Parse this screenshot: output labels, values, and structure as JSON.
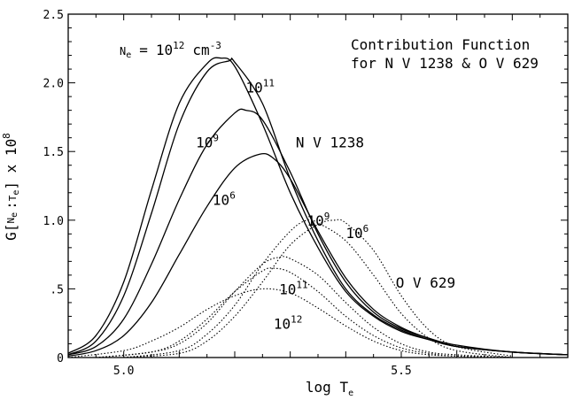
{
  "chart_data": {
    "type": "line",
    "xlabel": {
      "text": "log",
      "sym": "T",
      "sub": "e"
    },
    "ylabel": {
      "pre": "G[",
      "n": "N",
      "nsub": "e",
      "sep": ":",
      "t": "T",
      "tsub": "e",
      "post": "] x 10",
      "sup": "8"
    },
    "xlim": [
      4.9,
      5.8
    ],
    "ylim": [
      0,
      2.5
    ],
    "x_ticks": [
      {
        "value": 5.0,
        "label": "5.0"
      },
      {
        "value": 5.5,
        "label": "5.5"
      }
    ],
    "y_ticks": [
      {
        "value": 0,
        "label": "0"
      },
      {
        "value": 0.5,
        "label": ".5"
      },
      {
        "value": 1.0,
        "label": "1.0"
      },
      {
        "value": 1.5,
        "label": "1.5"
      },
      {
        "value": 2.0,
        "label": "2.0"
      },
      {
        "value": 2.5,
        "label": "2.5"
      }
    ],
    "title_lines": [
      "Contribution Function",
      "for N V 1238 & O V 629"
    ],
    "density_label": {
      "sym": "N",
      "sub": "e",
      "eq": "=",
      "base": "10",
      "exp": "12",
      "unit": "cm",
      "unit_exp": "-3"
    },
    "series": [
      {
        "style": "solid",
        "x": [
          4.9,
          4.95,
          5.0,
          5.05,
          5.1,
          5.15,
          5.175,
          5.2,
          5.25,
          5.3,
          5.35,
          5.4,
          5.45,
          5.5,
          5.55,
          5.6,
          5.7,
          5.8
        ],
        "y": [
          0.03,
          0.16,
          0.55,
          1.22,
          1.85,
          2.14,
          2.18,
          2.12,
          1.7,
          1.2,
          0.8,
          0.48,
          0.3,
          0.19,
          0.13,
          0.08,
          0.04,
          0.02
        ]
      },
      {
        "style": "solid",
        "x": [
          4.9,
          4.95,
          5.0,
          5.05,
          5.1,
          5.15,
          5.19,
          5.2,
          5.25,
          5.3,
          5.35,
          5.4,
          5.45,
          5.5,
          5.55,
          5.6,
          5.7,
          5.8
        ],
        "y": [
          0.02,
          0.12,
          0.45,
          1.05,
          1.7,
          2.08,
          2.16,
          2.15,
          1.85,
          1.3,
          0.85,
          0.5,
          0.31,
          0.2,
          0.13,
          0.08,
          0.04,
          0.02
        ]
      },
      {
        "style": "solid",
        "x": [
          4.9,
          4.95,
          5.0,
          5.05,
          5.1,
          5.15,
          5.2,
          5.22,
          5.25,
          5.3,
          5.35,
          5.4,
          5.45,
          5.5,
          5.55,
          5.6,
          5.7,
          5.8
        ],
        "y": [
          0.02,
          0.08,
          0.28,
          0.68,
          1.15,
          1.55,
          1.78,
          1.8,
          1.73,
          1.35,
          0.9,
          0.55,
          0.33,
          0.21,
          0.14,
          0.08,
          0.04,
          0.02
        ]
      },
      {
        "style": "solid",
        "x": [
          4.9,
          4.95,
          5.0,
          5.05,
          5.1,
          5.15,
          5.2,
          5.245,
          5.27,
          5.3,
          5.35,
          5.4,
          5.45,
          5.5,
          5.55,
          5.6,
          5.7,
          5.8
        ],
        "y": [
          0.01,
          0.05,
          0.16,
          0.4,
          0.75,
          1.1,
          1.38,
          1.48,
          1.45,
          1.3,
          0.92,
          0.58,
          0.35,
          0.22,
          0.14,
          0.09,
          0.04,
          0.02
        ]
      },
      {
        "style": "dotted",
        "x": [
          5.0,
          5.1,
          5.15,
          5.2,
          5.25,
          5.3,
          5.35,
          5.38,
          5.4,
          5.45,
          5.5,
          5.55,
          5.6,
          5.7
        ],
        "y": [
          0.0,
          0.03,
          0.12,
          0.3,
          0.55,
          0.82,
          0.97,
          1.0,
          0.98,
          0.78,
          0.45,
          0.2,
          0.08,
          0.01
        ]
      },
      {
        "style": "dotted",
        "x": [
          5.0,
          5.1,
          5.15,
          5.2,
          5.25,
          5.3,
          5.33,
          5.35,
          5.4,
          5.45,
          5.5,
          5.55,
          5.6,
          5.7
        ],
        "y": [
          0.0,
          0.05,
          0.17,
          0.38,
          0.68,
          0.92,
          1.0,
          0.98,
          0.85,
          0.6,
          0.32,
          0.14,
          0.05,
          0.0
        ]
      },
      {
        "style": "dotted",
        "x": [
          4.95,
          5.05,
          5.1,
          5.15,
          5.2,
          5.25,
          5.28,
          5.3,
          5.35,
          5.4,
          5.45,
          5.5,
          5.55,
          5.6,
          5.7
        ],
        "y": [
          0.0,
          0.04,
          0.1,
          0.25,
          0.48,
          0.68,
          0.73,
          0.72,
          0.6,
          0.4,
          0.22,
          0.1,
          0.04,
          0.02,
          0.0
        ]
      },
      {
        "style": "dotted",
        "x": [
          4.95,
          5.05,
          5.1,
          5.15,
          5.2,
          5.25,
          5.27,
          5.3,
          5.35,
          5.4,
          5.45,
          5.5,
          5.55,
          5.6,
          5.7
        ],
        "y": [
          0.0,
          0.04,
          0.12,
          0.28,
          0.48,
          0.63,
          0.65,
          0.62,
          0.48,
          0.3,
          0.16,
          0.07,
          0.03,
          0.01,
          0.0
        ]
      },
      {
        "style": "dotted",
        "x": [
          4.9,
          5.0,
          5.05,
          5.1,
          5.15,
          5.2,
          5.25,
          5.3,
          5.35,
          5.4,
          5.45,
          5.5,
          5.55,
          5.6,
          5.7
        ],
        "y": [
          0.0,
          0.05,
          0.12,
          0.22,
          0.35,
          0.45,
          0.5,
          0.47,
          0.36,
          0.23,
          0.12,
          0.05,
          0.02,
          0.01,
          0.0
        ]
      }
    ],
    "annotations": [
      {
        "text": "10",
        "sup": "11",
        "x": 5.22,
        "y": 1.93
      },
      {
        "text": "10",
        "sup": "9",
        "x": 5.13,
        "y": 1.53
      },
      {
        "text": "N V 1238",
        "sup": "",
        "x": 5.31,
        "y": 1.53
      },
      {
        "text": "10",
        "sup": "6",
        "x": 5.16,
        "y": 1.11
      },
      {
        "text": "10",
        "sup": "9",
        "x": 5.33,
        "y": 0.96
      },
      {
        "text": "10",
        "sup": "6",
        "x": 5.4,
        "y": 0.87
      },
      {
        "text": "O V 629",
        "sup": "",
        "x": 5.49,
        "y": 0.51
      },
      {
        "text": "10",
        "sup": "11",
        "x": 5.28,
        "y": 0.46
      },
      {
        "text": "10",
        "sup": "12",
        "x": 5.27,
        "y": 0.21
      }
    ]
  }
}
